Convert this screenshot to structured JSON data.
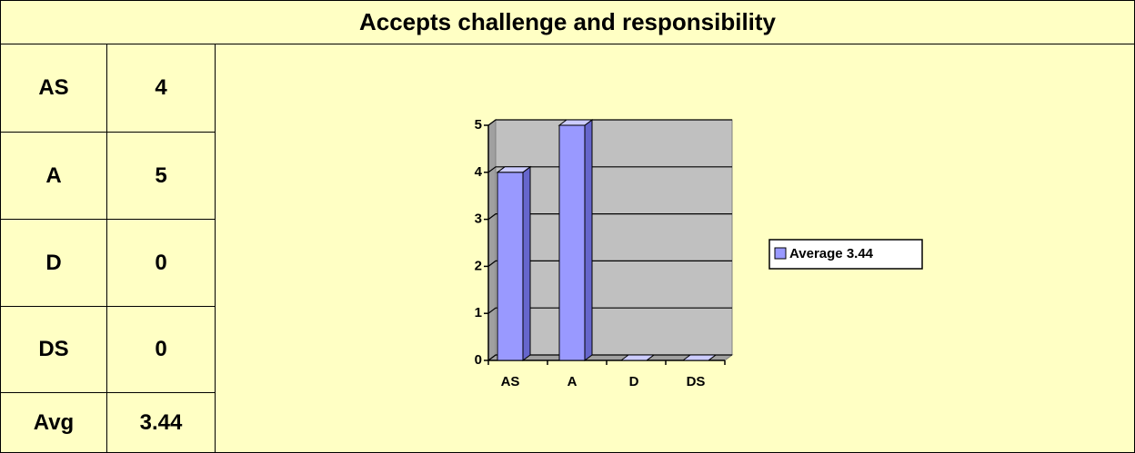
{
  "title": "Accepts challenge and responsibility",
  "table": {
    "rows": [
      [
        "AS",
        "4"
      ],
      [
        "A",
        "5"
      ],
      [
        "D",
        "0"
      ],
      [
        "DS",
        "0"
      ],
      [
        "Avg",
        "3.44"
      ]
    ]
  },
  "chart_data": {
    "type": "bar",
    "categories": [
      "AS",
      "A",
      "D",
      "DS"
    ],
    "series": [
      {
        "name": "Average 3.44",
        "color": "#9999ff",
        "values": [
          4,
          5,
          0,
          0
        ]
      }
    ],
    "ylim": [
      0,
      5
    ],
    "yticks": [
      0,
      1,
      2,
      3,
      4,
      5
    ],
    "grid": true
  }
}
